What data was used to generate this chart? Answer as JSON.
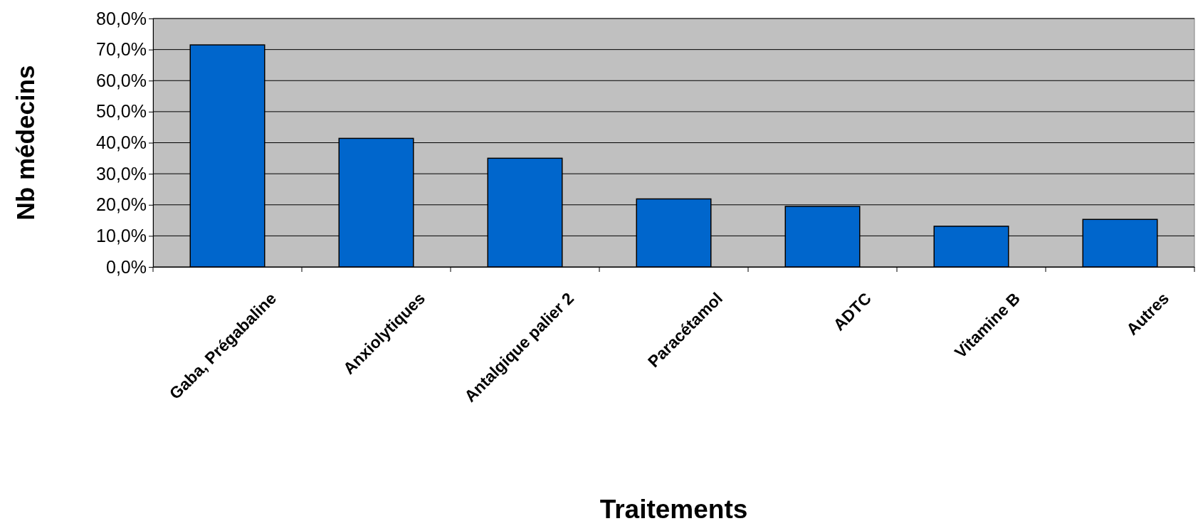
{
  "chart_data": {
    "type": "bar",
    "xlabel": "Traitements",
    "ylabel": "Nb médecins",
    "categories": [
      "Gaba, Prégabaline",
      "Anxiolytiques",
      "Antalgique palier 2",
      "Paracétamol",
      "ADTC",
      "Vitamine B",
      "Autres"
    ],
    "values": [
      71.5,
      41.4,
      35.0,
      21.9,
      19.5,
      13.1,
      15.3
    ],
    "color": "#0066cc",
    "ylim": [
      0,
      80
    ],
    "yticks": [
      {
        "value": 0,
        "label": "0,0%"
      },
      {
        "value": 10,
        "label": "10,0%"
      },
      {
        "value": 20,
        "label": "20,0%"
      },
      {
        "value": 30,
        "label": "30,0%"
      },
      {
        "value": 40,
        "label": "40,0%"
      },
      {
        "value": 50,
        "label": "50,0%"
      },
      {
        "value": 60,
        "label": "60,0%"
      },
      {
        "value": 70,
        "label": "70,0%"
      },
      {
        "value": 80,
        "label": "80,0%"
      }
    ],
    "grid": "y"
  }
}
